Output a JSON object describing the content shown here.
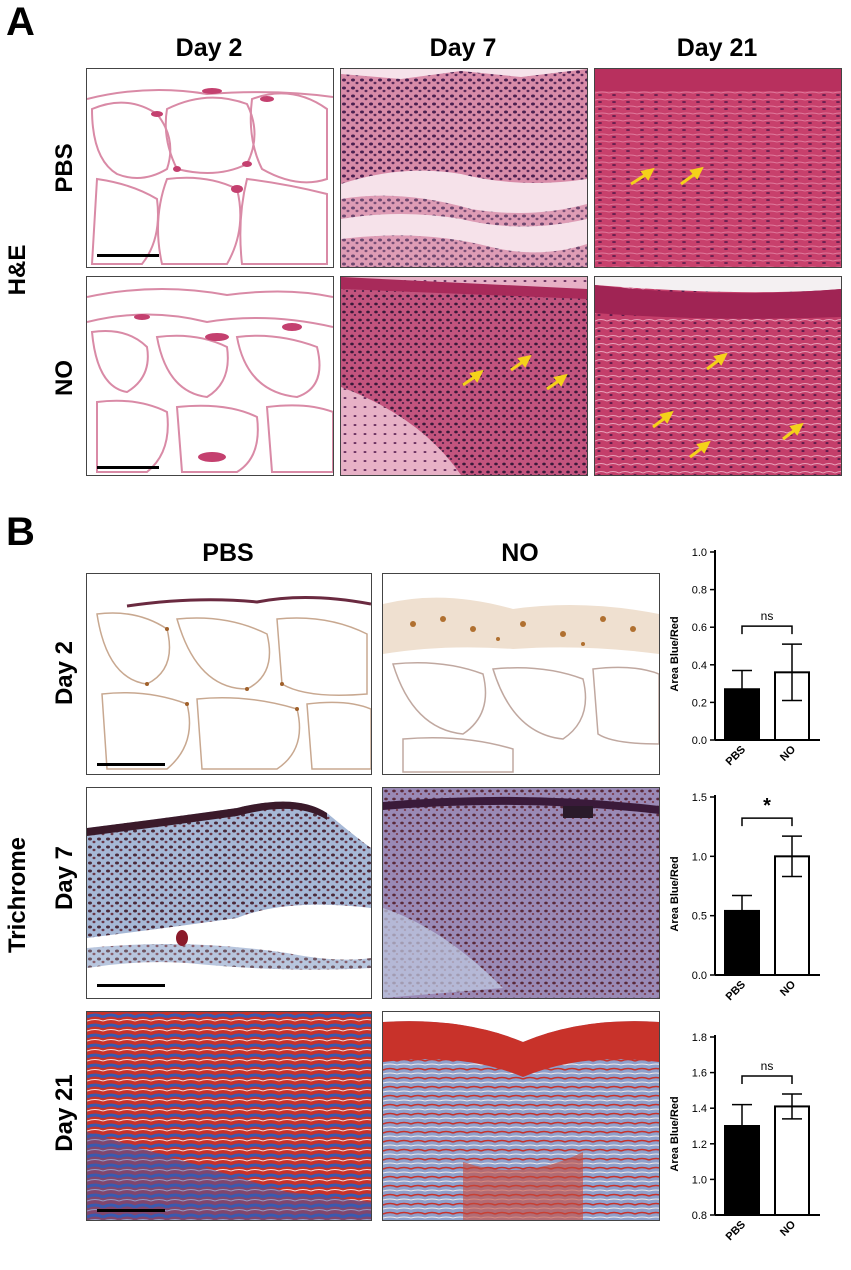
{
  "panel_a": {
    "letter": "A",
    "columns": [
      "Day 2",
      "Day 7",
      "Day 21"
    ],
    "rows": [
      "PBS",
      "NO"
    ],
    "stain": "H&E"
  },
  "panel_b": {
    "letter": "B",
    "columns": [
      "PBS",
      "NO"
    ],
    "rows": [
      "Day 2",
      "Day 7",
      "Day 21"
    ],
    "stain": "Trichrome"
  },
  "colors": {
    "he_bg": "#f7e3ea",
    "he_tissue": "#c93a6a",
    "he_nuclei": "#3a1a3a",
    "trichrome_blue": "#4a6fb0",
    "trichrome_red": "#c8322a",
    "arrow": "#f4d21a"
  },
  "chart_data": [
    {
      "type": "bar",
      "categories": [
        "PBS",
        "NO"
      ],
      "values": [
        0.27,
        0.36
      ],
      "errors": [
        0.1,
        0.15
      ],
      "bar_fill": [
        "#000000",
        "#ffffff"
      ],
      "ylabel": "Area Blue/Red",
      "ylim": [
        0.0,
        1.0
      ],
      "yticks": [
        "0.0",
        "0.2",
        "0.4",
        "0.6",
        "0.8",
        "1.0"
      ],
      "significance": "ns"
    },
    {
      "type": "bar",
      "categories": [
        "PBS",
        "NO"
      ],
      "values": [
        0.54,
        1.0
      ],
      "errors": [
        0.13,
        0.17
      ],
      "bar_fill": [
        "#000000",
        "#ffffff"
      ],
      "ylabel": "Area Blue/Red",
      "ylim": [
        0.0,
        1.5
      ],
      "yticks": [
        "0.0",
        "0.5",
        "1.0",
        "1.5"
      ],
      "significance": "*"
    },
    {
      "type": "bar",
      "categories": [
        "PBS",
        "NO"
      ],
      "values": [
        1.3,
        1.41
      ],
      "errors": [
        0.12,
        0.07
      ],
      "bar_fill": [
        "#000000",
        "#ffffff"
      ],
      "ylabel": "Area Blue/Red",
      "ylim": [
        0.8,
        1.8
      ],
      "yticks": [
        "0.8",
        "1.0",
        "1.2",
        "1.4",
        "1.6",
        "1.8"
      ],
      "significance": "ns"
    }
  ]
}
